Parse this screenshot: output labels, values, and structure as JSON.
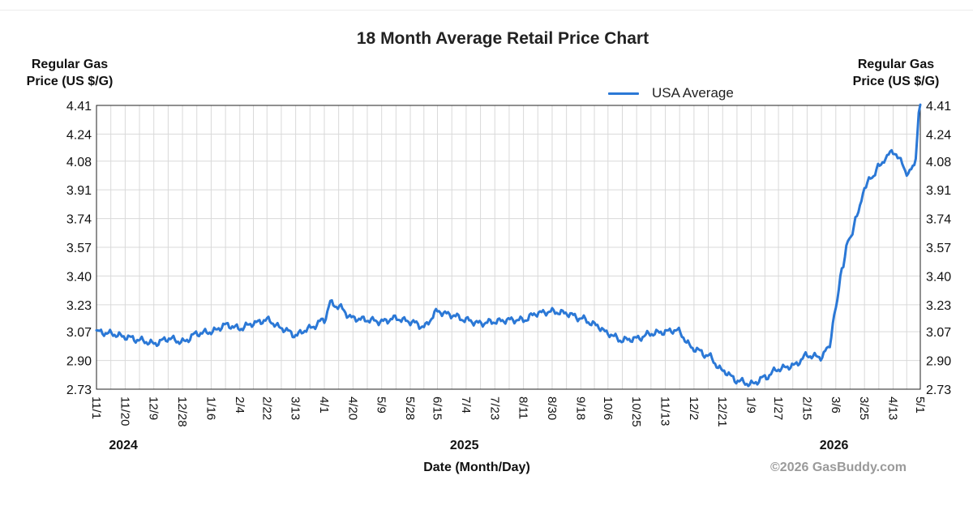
{
  "chart_data": {
    "type": "line",
    "title": "18 Month Average Retail Price Chart",
    "ylabel_left": [
      "Regular Gas",
      "Price (US $/G)"
    ],
    "ylabel_right": [
      "Regular Gas",
      "Price (US $/G)"
    ],
    "xlabel": "Date (Month/Day)",
    "credit": "©2026 GasBuddy.com",
    "ylim": [
      2.73,
      4.41
    ],
    "xlim": [
      "2024-11-01",
      "2026-05-01"
    ],
    "grid": true,
    "legend_position": "top-right",
    "y_ticks": [
      "4.41",
      "4.24",
      "4.08",
      "3.91",
      "3.74",
      "3.57",
      "3.40",
      "3.23",
      "3.07",
      "2.90",
      "2.73"
    ],
    "x_ticks": [
      {
        "label": "11/1",
        "date": "2024-11-01"
      },
      {
        "label": "11/20",
        "date": "2024-11-20"
      },
      {
        "label": "12/9",
        "date": "2024-12-09"
      },
      {
        "label": "12/28",
        "date": "2024-12-28"
      },
      {
        "label": "1/16",
        "date": "2025-01-16"
      },
      {
        "label": "2/4",
        "date": "2025-02-04"
      },
      {
        "label": "2/22",
        "date": "2025-02-22"
      },
      {
        "label": "3/13",
        "date": "2025-03-13"
      },
      {
        "label": "4/1",
        "date": "2025-04-01"
      },
      {
        "label": "4/20",
        "date": "2025-04-20"
      },
      {
        "label": "5/9",
        "date": "2025-05-09"
      },
      {
        "label": "5/28",
        "date": "2025-05-28"
      },
      {
        "label": "6/15",
        "date": "2025-06-15"
      },
      {
        "label": "7/4",
        "date": "2025-07-04"
      },
      {
        "label": "7/23",
        "date": "2025-07-23"
      },
      {
        "label": "8/11",
        "date": "2025-08-11"
      },
      {
        "label": "8/30",
        "date": "2025-08-30"
      },
      {
        "label": "9/18",
        "date": "2025-09-18"
      },
      {
        "label": "10/6",
        "date": "2025-10-06"
      },
      {
        "label": "10/25",
        "date": "2025-10-25"
      },
      {
        "label": "11/13",
        "date": "2025-11-13"
      },
      {
        "label": "12/2",
        "date": "2025-12-02"
      },
      {
        "label": "12/21",
        "date": "2025-12-21"
      },
      {
        "label": "1/9",
        "date": "2026-01-09"
      },
      {
        "label": "1/27",
        "date": "2026-01-27"
      },
      {
        "label": "2/15",
        "date": "2026-02-15"
      },
      {
        "label": "3/6",
        "date": "2026-03-06"
      },
      {
        "label": "3/25",
        "date": "2026-03-25"
      },
      {
        "label": "4/13",
        "date": "2026-04-13"
      },
      {
        "label": "5/1",
        "date": "2026-05-01"
      }
    ],
    "year_labels": [
      {
        "label": "2024",
        "date": "2024-11-20"
      },
      {
        "label": "2025",
        "date": "2025-07-04"
      },
      {
        "label": "2026",
        "date": "2026-03-06"
      }
    ],
    "series": [
      {
        "name": "USA Average",
        "color": "#2b78d6",
        "x": [
          "2024-11-01",
          "2024-11-10",
          "2024-11-20",
          "2024-11-30",
          "2024-12-09",
          "2024-12-19",
          "2024-12-28",
          "2025-01-07",
          "2025-01-16",
          "2025-01-26",
          "2025-02-04",
          "2025-02-13",
          "2025-02-22",
          "2025-03-04",
          "2025-03-13",
          "2025-03-22",
          "2025-04-01",
          "2025-04-05",
          "2025-04-10",
          "2025-04-20",
          "2025-04-30",
          "2025-05-09",
          "2025-05-18",
          "2025-05-28",
          "2025-06-06",
          "2025-06-15",
          "2025-06-24",
          "2025-07-04",
          "2025-07-13",
          "2025-07-23",
          "2025-08-01",
          "2025-08-11",
          "2025-08-20",
          "2025-08-30",
          "2025-09-08",
          "2025-09-18",
          "2025-09-28",
          "2025-10-06",
          "2025-10-15",
          "2025-10-25",
          "2025-11-04",
          "2025-11-13",
          "2025-11-20",
          "2025-12-02",
          "2025-12-11",
          "2025-12-21",
          "2025-12-31",
          "2026-01-09",
          "2026-01-18",
          "2026-01-27",
          "2026-02-06",
          "2026-02-15",
          "2026-02-24",
          "2026-03-01",
          "2026-03-06",
          "2026-03-10",
          "2026-03-15",
          "2026-03-20",
          "2026-03-25",
          "2026-03-30",
          "2026-04-04",
          "2026-04-08",
          "2026-04-13",
          "2026-04-18",
          "2026-04-23",
          "2026-04-27",
          "2026-05-01"
        ],
        "y": [
          3.07,
          3.06,
          3.04,
          3.02,
          3.0,
          3.03,
          3.01,
          3.06,
          3.07,
          3.11,
          3.09,
          3.12,
          3.14,
          3.09,
          3.05,
          3.09,
          3.14,
          3.24,
          3.22,
          3.15,
          3.14,
          3.13,
          3.15,
          3.13,
          3.1,
          3.19,
          3.17,
          3.14,
          3.12,
          3.13,
          3.14,
          3.14,
          3.18,
          3.19,
          3.18,
          3.15,
          3.11,
          3.06,
          3.02,
          3.03,
          3.06,
          3.07,
          3.08,
          2.97,
          2.93,
          2.84,
          2.78,
          2.76,
          2.8,
          2.85,
          2.87,
          2.93,
          2.92,
          2.97,
          3.2,
          3.45,
          3.62,
          3.75,
          3.92,
          3.99,
          4.05,
          4.1,
          4.14,
          4.08,
          4.0,
          4.06,
          4.41
        ]
      }
    ]
  }
}
